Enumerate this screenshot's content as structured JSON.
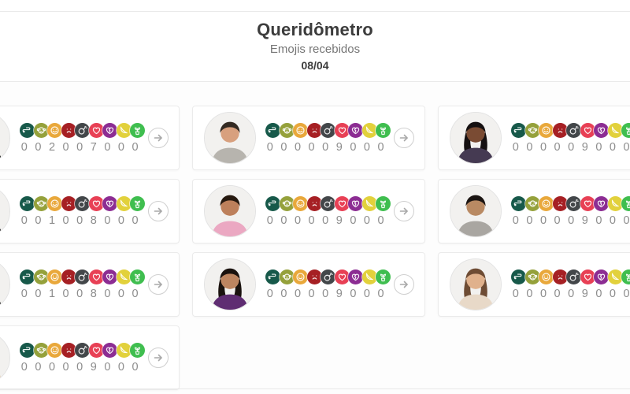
{
  "header": {
    "title": "Queridômetro",
    "subtitle": "Emojis recebidos",
    "date": "08/04"
  },
  "emojis": [
    {
      "name": "cobra",
      "color": "#17594a"
    },
    {
      "name": "mico",
      "color": "#95a13b"
    },
    {
      "name": "carinha-feliz",
      "color": "#e9a83b"
    },
    {
      "name": "carinha-triste",
      "color": "#a62024"
    },
    {
      "name": "bomba",
      "color": "#43474a"
    },
    {
      "name": "coracao",
      "color": "#e84055"
    },
    {
      "name": "coracao-partido",
      "color": "#8c2d93"
    },
    {
      "name": "banana",
      "color": "#e2d13c"
    },
    {
      "name": "planta",
      "color": "#3fbe4f"
    }
  ],
  "cards": [
    {
      "counts": [
        0,
        0,
        2,
        0,
        0,
        7,
        0,
        0,
        0
      ],
      "avatar": {
        "hair_style": "short",
        "skin": "#c8996f",
        "hair": "#151515",
        "shirt": "#181818"
      }
    },
    {
      "counts": [
        0,
        0,
        0,
        0,
        0,
        9,
        0,
        0,
        0
      ],
      "avatar": {
        "hair_style": "short",
        "skin": "#d8a07e",
        "hair": "#332a22",
        "shirt": "#b7b4ae"
      }
    },
    {
      "counts": [
        0,
        0,
        0,
        0,
        0,
        9,
        0,
        0,
        0
      ],
      "avatar": {
        "hair_style": "long",
        "skin": "#7a4b33",
        "hair": "#151011",
        "shirt": "#453a52"
      }
    },
    {
      "counts": [
        0,
        0,
        1,
        0,
        0,
        8,
        0,
        0,
        0
      ],
      "avatar": {
        "hair_style": "short",
        "skin": "#c8996f",
        "hair": "#141414",
        "shirt": "#1c1c1c"
      }
    },
    {
      "counts": [
        0,
        0,
        0,
        0,
        0,
        9,
        0,
        0,
        0
      ],
      "avatar": {
        "hair_style": "short",
        "skin": "#bd805b",
        "hair": "#26190f",
        "shirt": "#eba8c2"
      }
    },
    {
      "counts": [
        0,
        0,
        0,
        0,
        0,
        9,
        0,
        0,
        0
      ],
      "avatar": {
        "hair_style": "short",
        "skin": "#b98a63",
        "hair": "#1b1512",
        "shirt": "#a9a6a1"
      }
    },
    {
      "counts": [
        0,
        0,
        1,
        0,
        0,
        8,
        0,
        0,
        0
      ],
      "avatar": {
        "hair_style": "short",
        "skin": "#c8996f",
        "hair": "#141414",
        "shirt": "#262626"
      }
    },
    {
      "counts": [
        0,
        0,
        0,
        0,
        0,
        9,
        0,
        0,
        0
      ],
      "avatar": {
        "hair_style": "long",
        "skin": "#bd8560",
        "hair": "#1a120e",
        "shirt": "#5f2d72"
      }
    },
    {
      "counts": [
        0,
        0,
        0,
        0,
        0,
        9,
        0,
        0,
        0
      ],
      "avatar": {
        "hair_style": "long",
        "skin": "#e0b18c",
        "hair": "#6e4c34",
        "shirt": "#e8d9c8"
      }
    },
    {
      "counts": [
        0,
        0,
        0,
        0,
        0,
        9,
        0,
        0,
        0
      ],
      "avatar": {
        "hair_style": "long",
        "skin": "#d9ad7e",
        "hair": "#b07b3e",
        "shirt": "#e7d7c2"
      }
    }
  ]
}
